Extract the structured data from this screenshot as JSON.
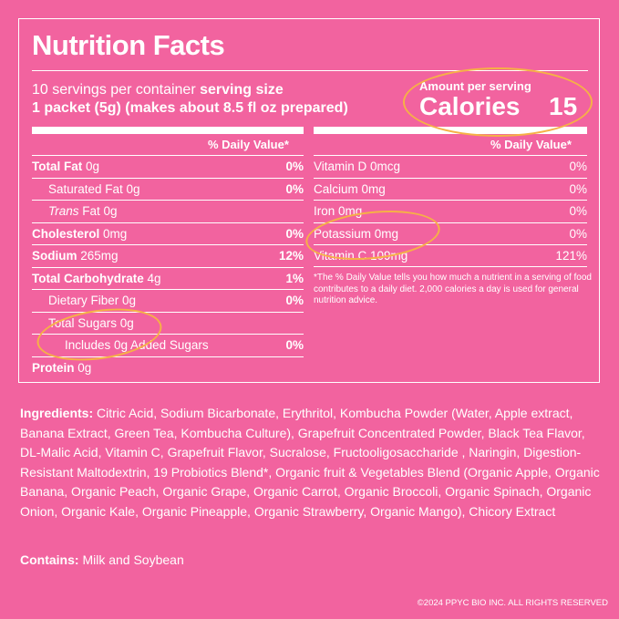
{
  "title": "Nutrition Facts",
  "servings": {
    "per_container": "10 servings per container",
    "size_label": "serving size",
    "size_value": "1 packet (5g) (makes about 8.5 fl oz prepared)"
  },
  "calories": {
    "amount_label": "Amount per serving",
    "label": "Calories",
    "value": "15"
  },
  "dv_header": "% Daily Value*",
  "left_rows": [
    {
      "bold": "Total Fat",
      "rest": " 0g",
      "dv": "0%"
    },
    {
      "bold": "",
      "rest": "Saturated Fat 0g",
      "dv": "0%"
    },
    {
      "italic": "Trans",
      "rest": " Fat 0g",
      "dv": ""
    },
    {
      "bold": "Cholesterol",
      "rest": " 0mg",
      "dv": "0%"
    },
    {
      "bold": "Sodium",
      "rest": " 265mg",
      "dv": "12%"
    },
    {
      "bold": "Total Carbohydrate",
      "rest": " 4g",
      "dv": "1%"
    },
    {
      "bold": "",
      "rest": "Dietary Fiber 0g",
      "dv": "0%"
    },
    {
      "bold": "",
      "rest": "Total Sugars 0g",
      "dv": ""
    },
    {
      "bold": "",
      "rest": "Includes 0g Added Sugars",
      "dv": "0%"
    },
    {
      "bold": "Protein",
      "rest": " 0g",
      "dv": ""
    }
  ],
  "right_rows": [
    {
      "label": "Vitamin D 0mcg",
      "dv": "0%"
    },
    {
      "label": "Calcium 0mg",
      "dv": "0%"
    },
    {
      "label": "Iron 0mg",
      "dv": "0%"
    },
    {
      "label": "Potassium 0mg",
      "dv": "0%"
    },
    {
      "label": "Vitamin C 109mg",
      "dv": "121%"
    }
  ],
  "footnote": "*The % Daily Value tells you how much a nutrient in a serving of food contributes to a daily diet. 2,000 calories a day is used for general nutrition advice.",
  "ingredients": {
    "label": "Ingredients:",
    "text": " Citric Acid, Sodium Bicarbonate, Erythritol, Kombucha Powder (Water, Apple extract, Banana Extract, Green Tea, Kombucha Culture), Grapefruit Concentrated Powder, Black Tea Flavor, DL-Malic Acid, Vitamin C, Grapefruit Flavor, Sucralose, Fructooligosaccharide , Naringin, Digestion-Resistant Maltodextrin, 19 Probiotics Blend*, Organic fruit & Vegetables Blend (Organic Apple, Organic Banana, Organic Peach, Organic Grape, Organic Carrot, Organic Broccoli, Organic Spinach, Organic Onion, Organic Kale, Organic Pineapple, Organic Strawberry, Organic Mango), Chicory Extract"
  },
  "contains": {
    "label": "Contains:",
    "text": " Milk and Soybean"
  },
  "copyright": "©2024 PPYC BIO INC. ALL RIGHTS RESERVED",
  "colors": {
    "background": "#f2639f",
    "highlight_ring": "#f6b146"
  }
}
